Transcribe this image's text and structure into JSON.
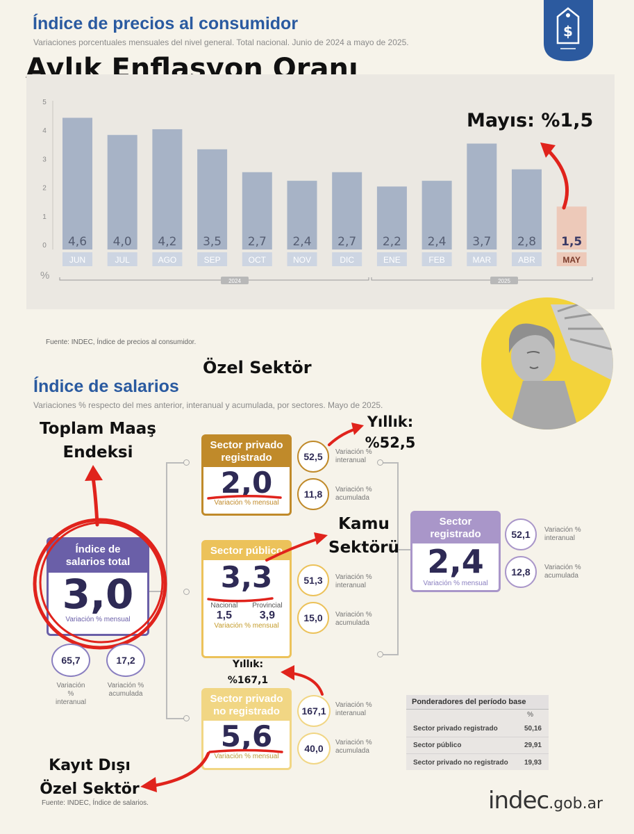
{
  "header": {
    "title": "Índice de precios al consumidor",
    "subtitle": "Variaciones porcentuales mensuales del nivel general. Total nacional. Junio de 2024 a mayo de 2025.",
    "overlay_title": "Aylık Enflasyon Oranı"
  },
  "chart_data": {
    "type": "bar",
    "categories": [
      "JUN",
      "JUL",
      "AGO",
      "SEP",
      "OCT",
      "NOV",
      "DIC",
      "ENE",
      "FEB",
      "MAR",
      "ABR",
      "MAY"
    ],
    "values": [
      4.6,
      4.0,
      4.2,
      3.5,
      2.7,
      2.4,
      2.7,
      2.2,
      2.4,
      3.7,
      2.8,
      1.5
    ],
    "value_labels": [
      "4,6",
      "4,0",
      "4,2",
      "3,5",
      "2,7",
      "2,4",
      "2,7",
      "2,2",
      "2,4",
      "3,7",
      "2,8",
      "1,5"
    ],
    "yticks": [
      "0",
      "1",
      "2",
      "3",
      "4",
      "5"
    ],
    "ylim": [
      0,
      5
    ],
    "ylabel": "%",
    "year_groups": [
      "2024",
      "2025"
    ],
    "highlight_category": "MAY",
    "bar_color": "#a7b3c6",
    "highlight_color": "#edc9b9",
    "annotation": "Mayıs: %1,5"
  },
  "chart_source": "Fuente: INDEC, Índice de precios al consumidor.",
  "salarios": {
    "title": "Índice de salarios",
    "subtitle": "Variaciones % respecto del mes anterior, interanual y acumulada, por sectores. Mayo de 2025.",
    "total": {
      "head": "Índice de salarios total",
      "value": "3,0",
      "cap": "Variación % mensual",
      "interanual": "65,7",
      "interanual_label": "Variación % interanual",
      "acumulada": "17,2",
      "acumulada_label": "Variación % acumulada"
    },
    "privado": {
      "head": "Sector privado registrado",
      "value": "2,0",
      "cap": "Variación % mensual",
      "interanual": "52,5",
      "acumulada": "11,8"
    },
    "publico": {
      "head": "Sector público",
      "value": "3,3",
      "nacional_label": "Nacional",
      "nacional": "1,5",
      "provincial_label": "Provincial",
      "provincial": "3,9",
      "cap": "Variación % mensual",
      "interanual": "51,3",
      "acumulada": "15,0"
    },
    "no_registrado": {
      "head": "Sector privado no registrado",
      "value": "5,6",
      "cap": "Variación % mensual",
      "interanual": "167,1",
      "acumulada": "40,0"
    },
    "registrado": {
      "head": "Sector registrado",
      "value": "2,4",
      "cap": "Variación % mensual",
      "interanual": "52,1",
      "acumulada": "12,8"
    },
    "lbl_interanual": "Variación % interanual",
    "lbl_acumulada": "Variación % acumulada",
    "source": "Fuente: INDEC, Índice de salarios."
  },
  "ponderadores": {
    "title": "Ponderadores del período base",
    "unit": "%",
    "rows": [
      {
        "label": "Sector privado registrado",
        "value": "50,16"
      },
      {
        "label": "Sector público",
        "value": "29,91"
      },
      {
        "label": "Sector privado no registrado",
        "value": "19,93"
      }
    ]
  },
  "annotations": {
    "ozel": "Özel Sektör",
    "toplam_1": "Toplam Maaş",
    "toplam_2": "Endeksi",
    "yillik_priv_1": "Yıllık:",
    "yillik_priv_2": "%52,5",
    "kamu_1": "Kamu",
    "kamu_2": "Sektörü",
    "yillik_nr_1": "Yıllık:",
    "yillik_nr_2": "%167,1",
    "kayit_1": "Kayıt Dışı",
    "kayit_2": "Özel Sektör"
  },
  "logo": {
    "main": "indec",
    "suffix": ".gob.ar"
  },
  "colors": {
    "title_blue": "#2a5aa0",
    "privado": "#c08a2a",
    "publico": "#ecc25a",
    "no_registrado": "#f1d684",
    "total": "#6a5fa8",
    "registrado": "#a996c9",
    "annotation_red": "#e0231c"
  }
}
